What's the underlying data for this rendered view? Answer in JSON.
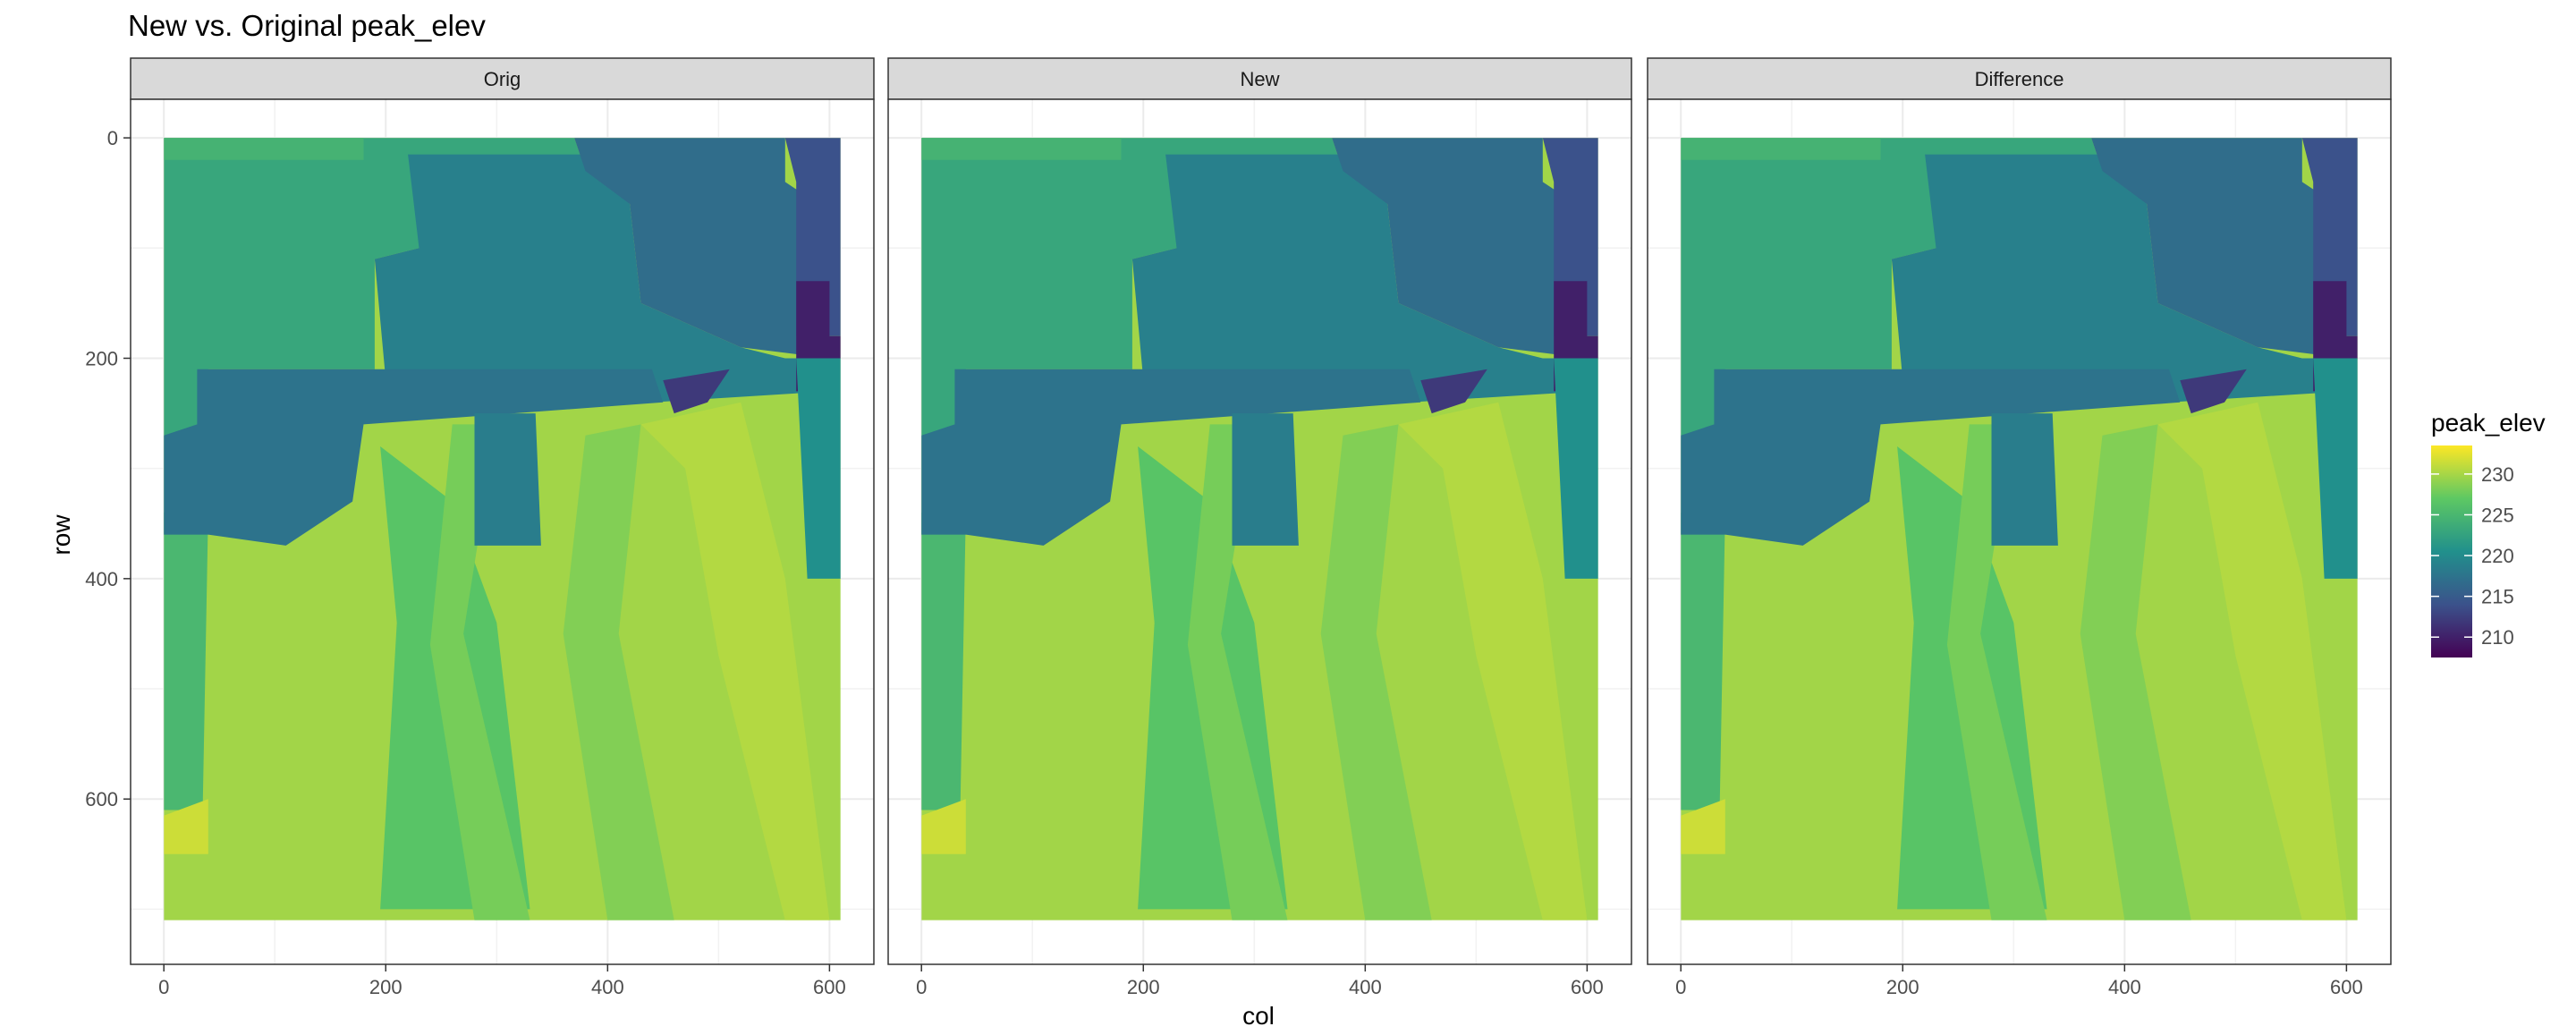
{
  "chart_data": {
    "type": "heatmap",
    "title": "New vs. Original peak_elev",
    "xlabel": "col",
    "ylabel": "row",
    "facets": [
      "Orig",
      "New",
      "Difference"
    ],
    "x_range": [
      -30,
      640
    ],
    "y_range": [
      750,
      -35
    ],
    "x_ticks": [
      0,
      200,
      400,
      600
    ],
    "y_ticks": [
      0,
      200,
      400,
      600
    ],
    "grid": true,
    "legend": {
      "title": "peak_elev",
      "position": "right",
      "min": 207.5,
      "max": 233.5,
      "ticks": [
        210,
        215,
        220,
        225,
        230
      ],
      "colors": [
        "#440154",
        "#3b528b",
        "#21908c",
        "#5dc863",
        "#fde725"
      ]
    },
    "regions": [
      {
        "poly": [
          [
            0,
            0
          ],
          [
            610,
            0
          ],
          [
            610,
            710
          ],
          [
            0,
            710
          ]
        ],
        "value": 229.8
      },
      {
        "poly": [
          [
            195,
            280
          ],
          [
            260,
            330
          ],
          [
            300,
            440
          ],
          [
            330,
            700
          ],
          [
            195,
            700
          ],
          [
            210,
            440
          ]
        ],
        "value": 226.5
      },
      {
        "poly": [
          [
            260,
            260
          ],
          [
            300,
            260
          ],
          [
            270,
            450
          ],
          [
            330,
            710
          ],
          [
            280,
            710
          ],
          [
            240,
            460
          ]
        ],
        "value": 228.0
      },
      {
        "poly": [
          [
            380,
            270
          ],
          [
            430,
            260
          ],
          [
            410,
            450
          ],
          [
            460,
            710
          ],
          [
            400,
            710
          ],
          [
            360,
            450
          ]
        ],
        "value": 228.5
      },
      {
        "poly": [
          [
            430,
            260
          ],
          [
            520,
            240
          ],
          [
            560,
            400
          ],
          [
            600,
            710
          ],
          [
            560,
            710
          ],
          [
            500,
            470
          ],
          [
            470,
            300
          ]
        ],
        "value": 230.5
      },
      {
        "poly": [
          [
            0,
            340
          ],
          [
            40,
            340
          ],
          [
            35,
            610
          ],
          [
            0,
            610
          ]
        ],
        "value": 225.0
      },
      {
        "poly": [
          [
            0,
            615
          ],
          [
            40,
            600
          ],
          [
            40,
            650
          ],
          [
            0,
            650
          ]
        ],
        "value": 231.5
      },
      {
        "poly": [
          [
            0,
            0
          ],
          [
            370,
            0
          ],
          [
            380,
            30
          ],
          [
            230,
            30
          ],
          [
            230,
            100
          ],
          [
            190,
            110
          ],
          [
            190,
            210
          ],
          [
            40,
            210
          ],
          [
            40,
            360
          ],
          [
            0,
            360
          ]
        ],
        "value": 223.0
      },
      {
        "poly": [
          [
            0,
            0
          ],
          [
            180,
            0
          ],
          [
            180,
            20
          ],
          [
            0,
            20
          ]
        ],
        "value": 224.5
      },
      {
        "poly": [
          [
            220,
            15
          ],
          [
            380,
            15
          ],
          [
            420,
            60
          ],
          [
            430,
            150
          ],
          [
            520,
            190
          ],
          [
            560,
            200
          ],
          [
            600,
            200
          ],
          [
            600,
            230
          ],
          [
            440,
            240
          ],
          [
            430,
            220
          ],
          [
            200,
            220
          ],
          [
            190,
            110
          ],
          [
            230,
            100
          ]
        ],
        "value": 218.8
      },
      {
        "poly": [
          [
            370,
            0
          ],
          [
            560,
            0
          ],
          [
            560,
            40
          ],
          [
            590,
            60
          ],
          [
            600,
            200
          ],
          [
            520,
            190
          ],
          [
            430,
            150
          ],
          [
            420,
            60
          ],
          [
            380,
            30
          ]
        ],
        "value": 216.8
      },
      {
        "poly": [
          [
            560,
            0
          ],
          [
            610,
            0
          ],
          [
            610,
            180
          ],
          [
            570,
            180
          ],
          [
            570,
            40
          ]
        ],
        "value": 214.0
      },
      {
        "poly": [
          [
            570,
            130
          ],
          [
            600,
            130
          ],
          [
            600,
            180
          ],
          [
            610,
            180
          ],
          [
            610,
            200
          ],
          [
            590,
            200
          ],
          [
            585,
            230
          ],
          [
            570,
            230
          ]
        ],
        "value": 210.0
      },
      {
        "poly": [
          [
            30,
            210
          ],
          [
            440,
            210
          ],
          [
            450,
            240
          ],
          [
            180,
            260
          ],
          [
            170,
            330
          ],
          [
            110,
            370
          ],
          [
            40,
            360
          ],
          [
            0,
            360
          ],
          [
            0,
            270
          ],
          [
            30,
            260
          ]
        ],
        "value": 217.5
      },
      {
        "poly": [
          [
            280,
            250
          ],
          [
            335,
            250
          ],
          [
            340,
            370
          ],
          [
            280,
            370
          ]
        ],
        "value": 218.5
      },
      {
        "poly": [
          [
            450,
            220
          ],
          [
            510,
            210
          ],
          [
            490,
            240
          ],
          [
            460,
            250
          ]
        ],
        "value": 212.0
      },
      {
        "poly": [
          [
            570,
            200
          ],
          [
            610,
            200
          ],
          [
            610,
            400
          ],
          [
            580,
            400
          ]
        ],
        "value": 220.5
      }
    ]
  }
}
